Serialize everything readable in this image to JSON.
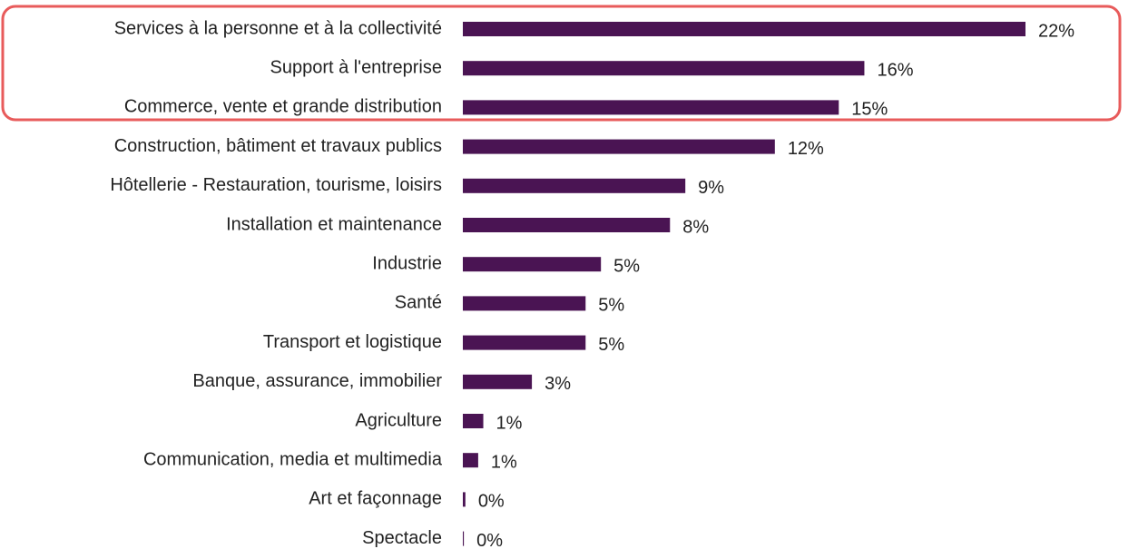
{
  "chart_data": {
    "type": "bar",
    "orientation": "horizontal",
    "color": "#4a1453",
    "categories": [
      "Services à la personne et à la collectivité",
      "Support à l'entreprise",
      "Commerce, vente et grande distribution",
      "Construction, bâtiment et travaux publics",
      "Hôtellerie - Restauration, tourisme, loisirs",
      "Installation et maintenance",
      "Industrie",
      "Santé",
      "Transport et logistique",
      "Banque, assurance, immobilier",
      "Agriculture",
      "Communication, media et multimedia",
      "Art et façonnage",
      "Spectacle"
    ],
    "values": [
      22,
      15.7,
      14.7,
      12.2,
      8.7,
      8.1,
      5.4,
      4.8,
      4.8,
      2.7,
      0.8,
      0.6,
      0.1,
      0.04
    ],
    "value_labels": [
      "22%",
      "16%",
      "15%",
      "12%",
      "9%",
      "8%",
      "5%",
      "5%",
      "5%",
      "3%",
      "1%",
      "1%",
      "0%",
      "0%"
    ]
  }
}
